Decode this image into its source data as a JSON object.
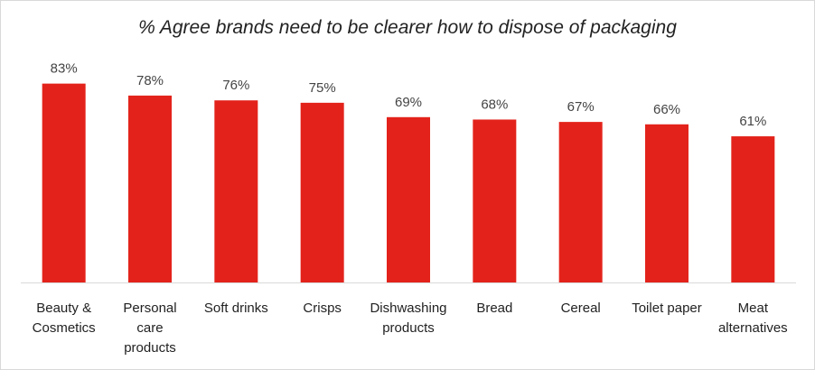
{
  "chart_data": {
    "type": "bar",
    "title": "% Agree brands need to be clearer how to dispose of packaging",
    "categories": [
      [
        "Beauty &",
        "Cosmetics"
      ],
      [
        "Personal",
        "care",
        "products"
      ],
      [
        "Soft drinks"
      ],
      [
        "Crisps"
      ],
      [
        "Dishwashing",
        "products"
      ],
      [
        "Bread"
      ],
      [
        "Cereal"
      ],
      [
        "Toilet paper"
      ],
      [
        "Meat",
        "alternatives"
      ]
    ],
    "values": [
      83,
      78,
      76,
      75,
      69,
      68,
      67,
      66,
      61
    ],
    "value_labels": [
      "83%",
      "78%",
      "76%",
      "75%",
      "69%",
      "68%",
      "67%",
      "66%",
      "61%"
    ],
    "ylim": [
      0,
      100
    ],
    "xlabel": "",
    "ylabel": "",
    "grid": false,
    "legend": "none",
    "bar_color": "#e3231b"
  }
}
